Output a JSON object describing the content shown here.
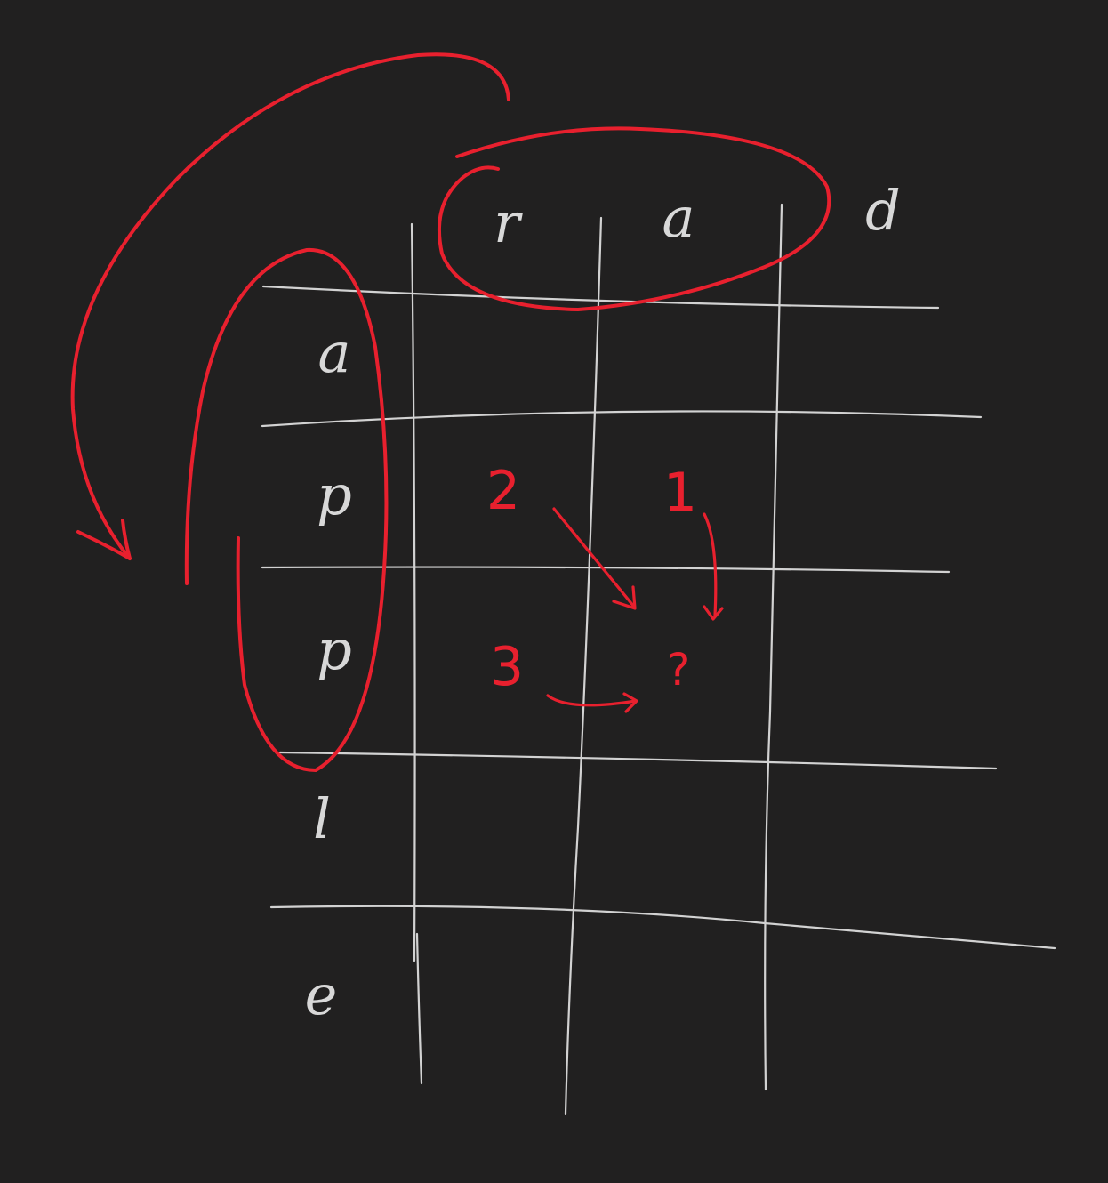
{
  "diagram": {
    "column_headers": [
      "r",
      "a",
      "d"
    ],
    "row_headers": [
      "a",
      "p",
      "p",
      "l",
      "e"
    ],
    "cell_values": {
      "diagonal": "2",
      "top": "1",
      "left": "3",
      "target": "?"
    },
    "colors": {
      "background": "#212020",
      "grid": "#d2d2d2",
      "annotation": "#e8202e"
    }
  }
}
